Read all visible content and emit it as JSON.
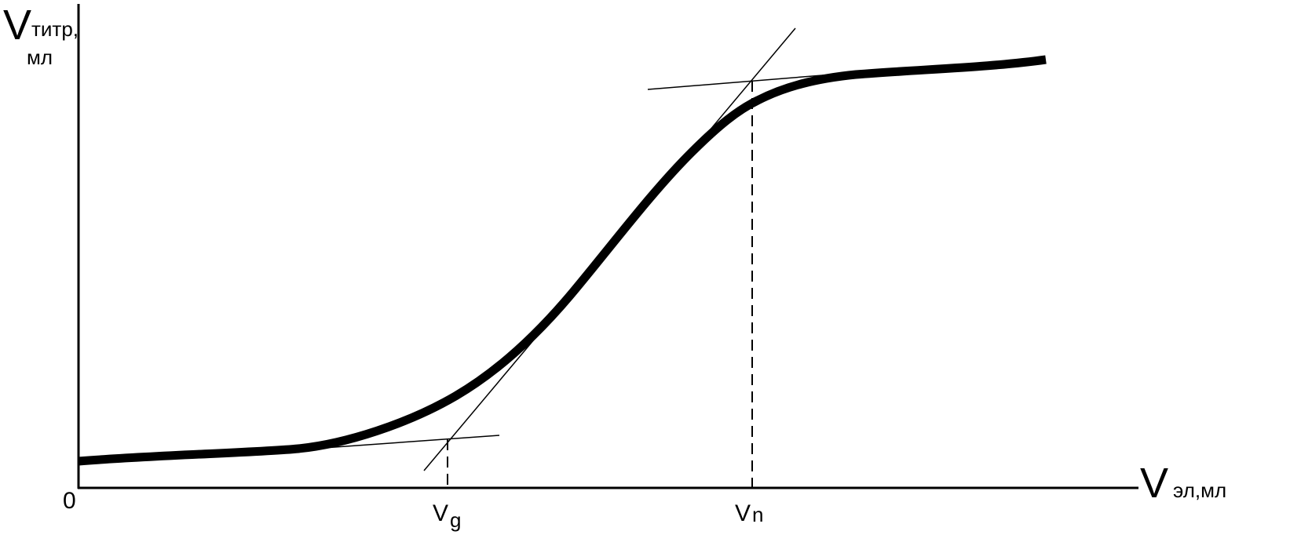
{
  "y_axis_label": {
    "symbol": "V",
    "subscript": "титр,",
    "unit": "мл"
  },
  "x_axis_label": {
    "symbol": "V",
    "subscript": "эл,мл"
  },
  "origin": "0",
  "markers": [
    {
      "symbol": "V",
      "subscript": "g"
    },
    {
      "symbol": "V",
      "subscript": "n"
    }
  ]
}
